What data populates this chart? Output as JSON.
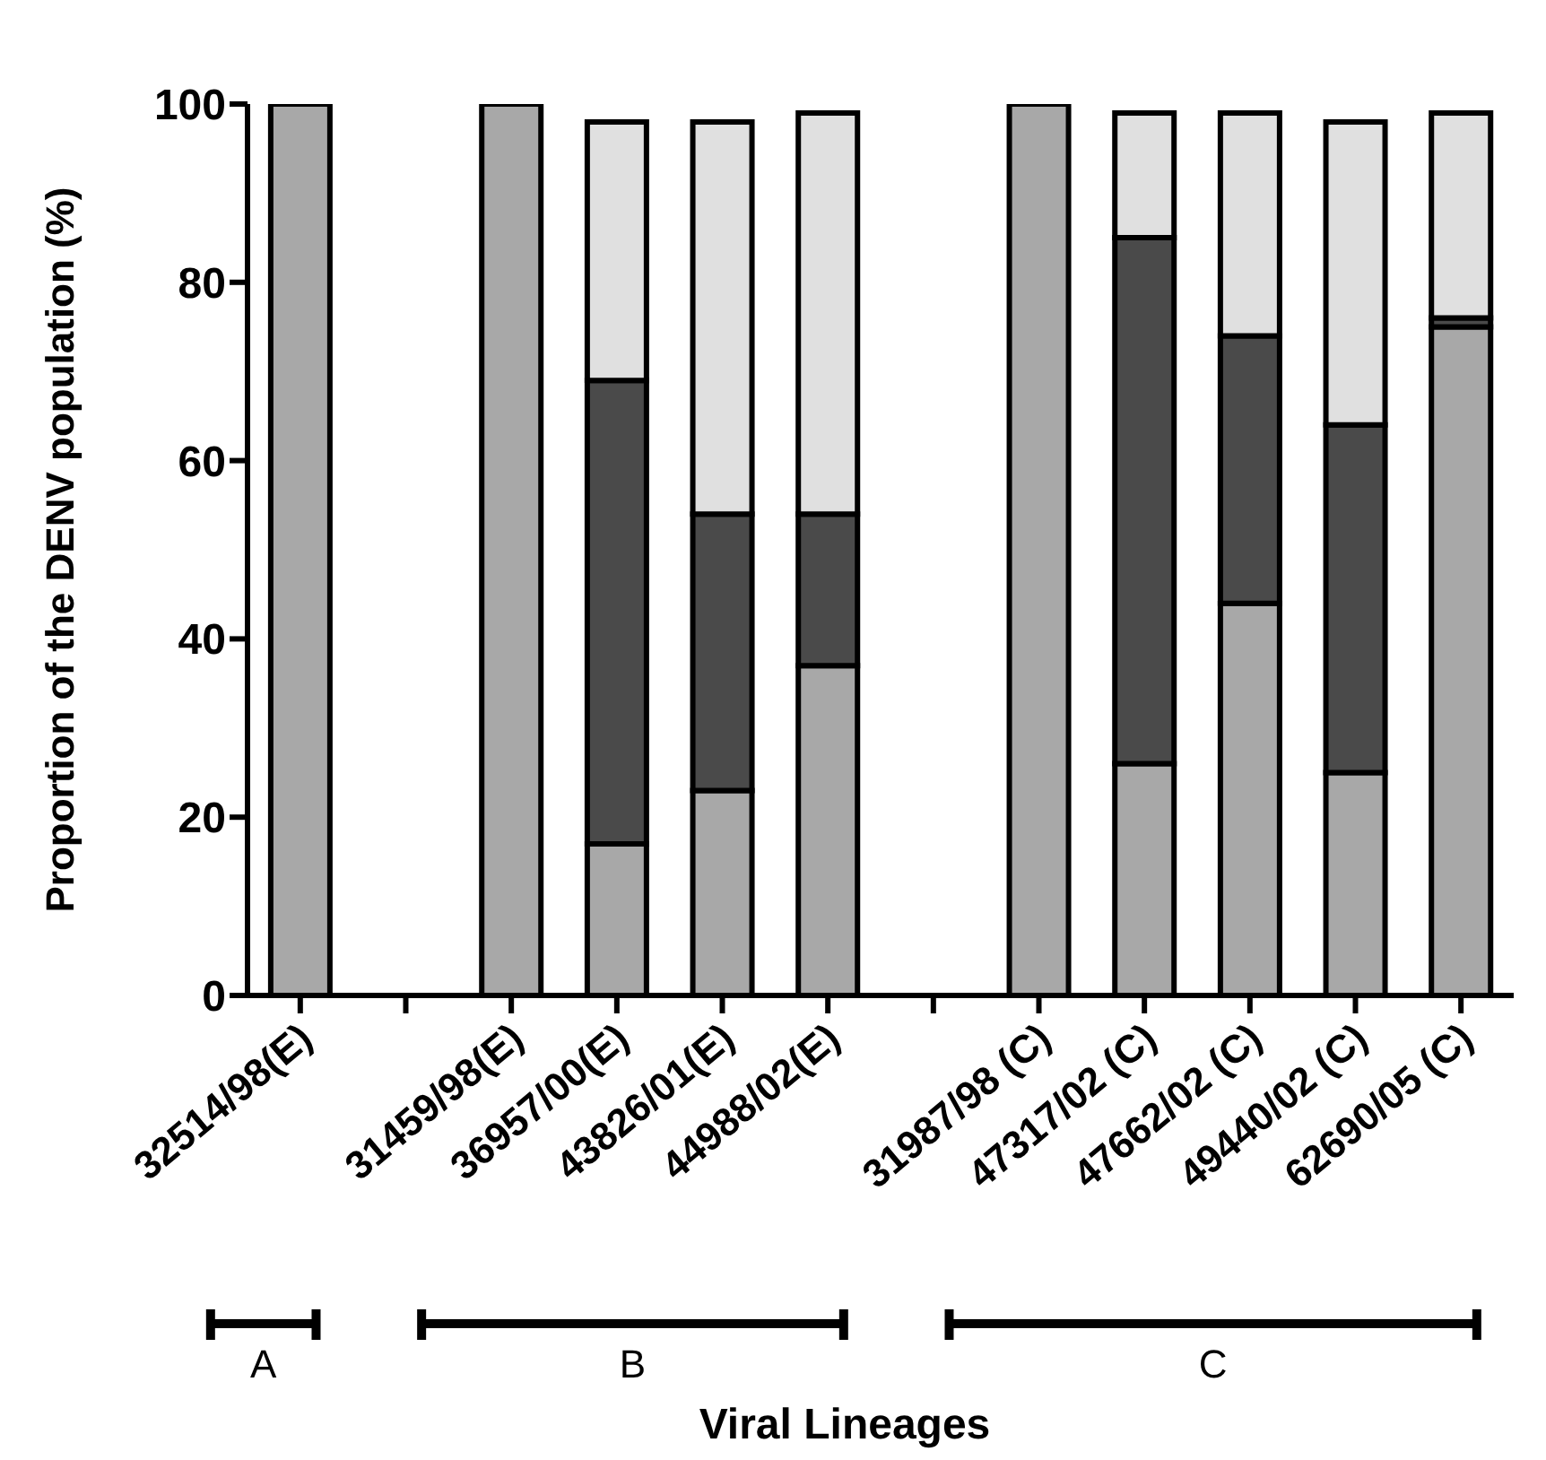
{
  "chart_data": {
    "type": "bar",
    "stacked": true,
    "xlabel": "Viral Lineages",
    "ylabel": "Proportion of the DENV population (%)",
    "categories": [
      "32514/98(E)",
      null,
      "31459/98(E)",
      "36957/00(E)",
      "43826/01(E)",
      "44988/02(E)",
      null,
      "31987/98 (C)",
      "47317/02 (C)",
      "47662/02 (C)",
      "49440/02 (C)",
      "62690/05 (C)"
    ],
    "series": [
      {
        "color": "#a8a8a8",
        "values": [
          100,
          null,
          100,
          17,
          23,
          37,
          null,
          100,
          26,
          44,
          25,
          75
        ]
      },
      {
        "color": "#4a4a4a",
        "values": [
          null,
          null,
          null,
          52,
          31,
          17,
          null,
          null,
          59,
          30,
          39,
          1
        ]
      },
      {
        "color": "#e0e0e0",
        "values": [
          null,
          null,
          null,
          29,
          44,
          45,
          null,
          null,
          14,
          25,
          34,
          23
        ]
      }
    ],
    "ylim": [
      0,
      100
    ],
    "yticks": [
      0,
      20,
      40,
      60,
      80,
      100
    ],
    "annotations": [
      "A",
      "B",
      "C"
    ]
  }
}
